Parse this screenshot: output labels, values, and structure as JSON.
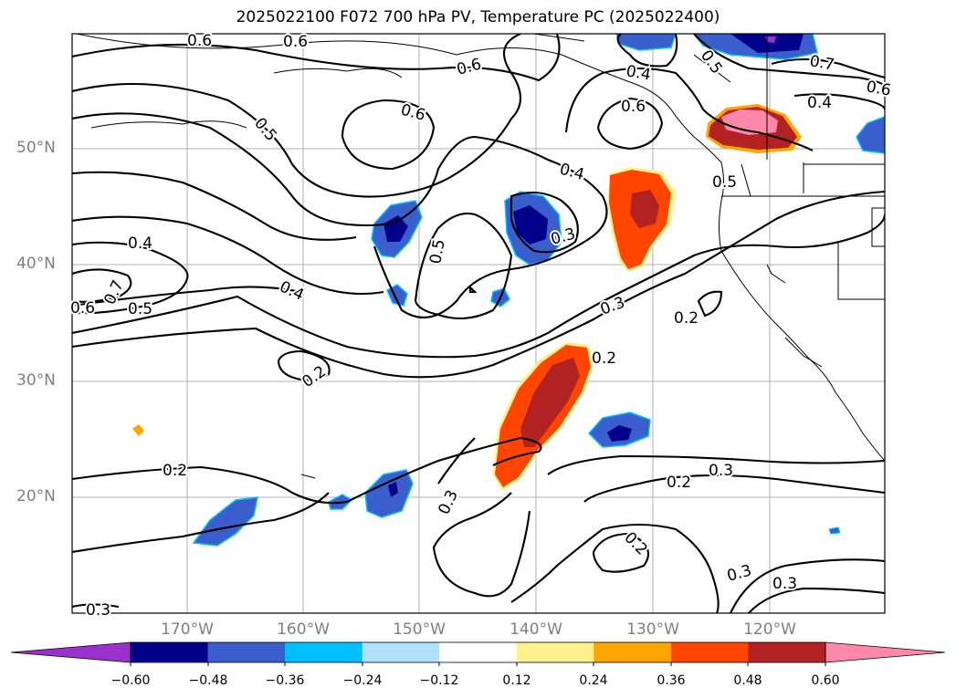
{
  "title": "2025022100 F072 700 hPa PV, Temperature PC (2025022400)",
  "lat_labels": [
    "50°N",
    "40°N",
    "30°N",
    "20°N"
  ],
  "lon_labels": [
    "170°W",
    "160°W",
    "150°W",
    "140°W",
    "130°W",
    "120°W"
  ],
  "colorbar": {
    "ticks": [
      "−0.60",
      "−0.48",
      "−0.36",
      "−0.24",
      "−0.12",
      "0.12",
      "0.24",
      "0.36",
      "0.48",
      "0.60"
    ],
    "colors": [
      "#9932cc",
      "#00008b",
      "#3a5fcd",
      "#00bfff",
      "#b0e2ff",
      "#ffffff",
      "#fff08b",
      "#ffa500",
      "#ff4500",
      "#b22222",
      "#ff88aa"
    ]
  },
  "contour_labels": [
    "0.6",
    "0.6",
    "0.6",
    "0.6",
    "0.4",
    "0.5",
    "0.7",
    "0.6",
    "0.4",
    "0.5",
    "0.6",
    "0.4",
    "0.5",
    "0.3",
    "0.5",
    "0.4",
    "0.7",
    "0.6",
    "0.5",
    "0.4",
    "0.3",
    "0.2",
    "0.2",
    "0.2",
    "0.3",
    "0.2",
    "0.3",
    "0.2",
    "0.2",
    "0.3",
    "0.3",
    "0.3"
  ],
  "colors": {
    "contour": "#000000",
    "grid": "#b0b0b0",
    "coast": "#000000"
  }
}
